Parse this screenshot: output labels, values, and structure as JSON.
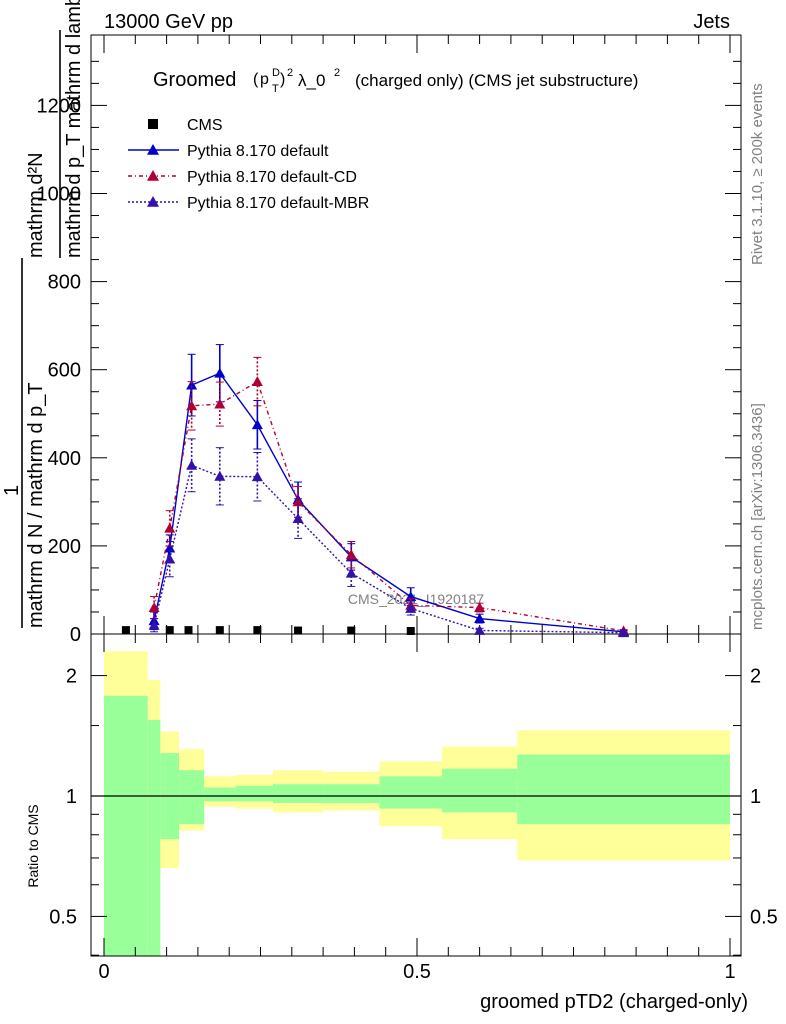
{
  "header": {
    "left": "13000 GeV pp",
    "right": "Jets"
  },
  "side_labels": {
    "rivet": "Rivet 3.1.10, ≥ 200k events",
    "mcplots": "mcplots.cern.ch [arXiv:1306.3436]"
  },
  "watermark": "CMS_2021_I1920187",
  "chart_data": [
    {
      "type": "line",
      "title": {
        "prefix": "Groomed",
        "p": "p",
        "sup_d": "D",
        "sub_t": "T",
        "sup_2": "2",
        "lambda": "λ_0",
        "sup_l": "2",
        "suffix": "(charged only) (CMS jet substructure)"
      },
      "ylabel": {
        "top": "mathrm d²N",
        "denom": "mathrm d p_T mathrm d lambda",
        "one": "1",
        "lower": "mathrm d N / mathrm d p_T"
      },
      "xlim": [
        0,
        1
      ],
      "ylim": [
        0,
        1350
      ],
      "yticks": [
        "0",
        "200",
        "400",
        "600",
        "800",
        "1000",
        "1200"
      ],
      "legend": [
        "CMS",
        "Pythia 8.170 default",
        "Pythia 8.170 default-CD",
        "Pythia 8.170 default-MBR"
      ],
      "cms": {
        "name": "CMS",
        "x": [
          0.035,
          0.105,
          0.135,
          0.185,
          0.245,
          0.31,
          0.395,
          0.49
        ],
        "y": [
          2,
          2,
          2,
          2,
          2,
          1,
          1,
          0
        ]
      },
      "series": [
        {
          "name": "Pythia 8.170 default",
          "color": "#0000cc",
          "marker": "triangle",
          "dash": "solid",
          "x": [
            0.08,
            0.105,
            0.14,
            0.185,
            0.245,
            0.31,
            0.395,
            0.49,
            0.6,
            0.83
          ],
          "y": [
            30,
            195,
            565,
            592,
            475,
            305,
            175,
            85,
            35,
            5
          ],
          "err": [
            20,
            30,
            70,
            65,
            55,
            40,
            30,
            20,
            10,
            3
          ]
        },
        {
          "name": "Pythia 8.170 default-CD",
          "color": "#b00033",
          "marker": "triangle",
          "dash": "4,3,1,3",
          "x": [
            0.08,
            0.105,
            0.14,
            0.185,
            0.245,
            0.31,
            0.395,
            0.49,
            0.6,
            0.83
          ],
          "y": [
            60,
            240,
            518,
            522,
            573,
            300,
            180,
            65,
            60,
            7
          ],
          "err": [
            25,
            40,
            55,
            50,
            55,
            35,
            30,
            15,
            10,
            3
          ]
        },
        {
          "name": "Pythia 8.170 default-MBR",
          "color": "#3311aa",
          "marker": "triangle",
          "dash": "2,2",
          "x": [
            0.08,
            0.105,
            0.14,
            0.185,
            0.245,
            0.31,
            0.395,
            0.49,
            0.6,
            0.83
          ],
          "y": [
            20,
            170,
            383,
            358,
            357,
            262,
            138,
            58,
            8,
            3
          ],
          "err": [
            15,
            40,
            60,
            65,
            55,
            45,
            30,
            15,
            5,
            2
          ]
        }
      ]
    },
    {
      "type": "area",
      "ylabel": "Ratio to CMS",
      "xlabel": "groomed pTD2 (charged-only)",
      "xlim": [
        0,
        1
      ],
      "ylim": [
        0.35,
        2.3
      ],
      "yticks": [
        "0.5",
        "1",
        "2"
      ],
      "xticks": [
        "0",
        "0.5",
        "1"
      ],
      "bins": [
        {
          "x0": 0.0,
          "x1": 0.07,
          "g_lo": 0.35,
          "g_hi": 1.78,
          "y_lo": 0.35,
          "y_hi": 2.3
        },
        {
          "x0": 0.07,
          "x1": 0.09,
          "g_lo": 0.35,
          "g_hi": 1.55,
          "y_lo": 0.35,
          "y_hi": 1.95
        },
        {
          "x0": 0.09,
          "x1": 0.12,
          "g_lo": 0.78,
          "g_hi": 1.28,
          "y_lo": 0.66,
          "y_hi": 1.45
        },
        {
          "x0": 0.12,
          "x1": 0.16,
          "g_lo": 0.85,
          "g_hi": 1.16,
          "y_lo": 0.82,
          "y_hi": 1.31
        },
        {
          "x0": 0.16,
          "x1": 0.21,
          "g_lo": 0.97,
          "g_hi": 1.05,
          "y_lo": 0.94,
          "y_hi": 1.12
        },
        {
          "x0": 0.21,
          "x1": 0.27,
          "g_lo": 0.97,
          "g_hi": 1.06,
          "y_lo": 0.93,
          "y_hi": 1.13
        },
        {
          "x0": 0.27,
          "x1": 0.35,
          "g_lo": 0.96,
          "g_hi": 1.07,
          "y_lo": 0.91,
          "y_hi": 1.16
        },
        {
          "x0": 0.35,
          "x1": 0.44,
          "g_lo": 0.96,
          "g_hi": 1.07,
          "y_lo": 0.92,
          "y_hi": 1.15
        },
        {
          "x0": 0.44,
          "x1": 0.54,
          "g_lo": 0.93,
          "g_hi": 1.12,
          "y_lo": 0.84,
          "y_hi": 1.22
        },
        {
          "x0": 0.54,
          "x1": 0.66,
          "g_lo": 0.91,
          "g_hi": 1.17,
          "y_lo": 0.78,
          "y_hi": 1.33
        },
        {
          "x0": 0.66,
          "x1": 1.0,
          "g_lo": 0.85,
          "g_hi": 1.27,
          "y_lo": 0.69,
          "y_hi": 1.46
        }
      ]
    }
  ]
}
